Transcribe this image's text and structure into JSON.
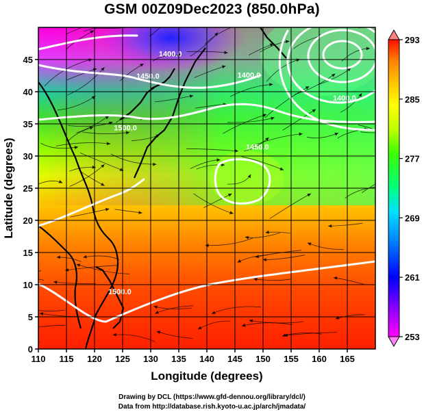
{
  "title": "GSM 00Z09Dec2023 (850.0hPa)",
  "credits": {
    "line1": "Drawing by DCL (https://www.gfd-dennou.org/library/dcl/)",
    "line2": "Data from http://database.rish.kyoto-u.ac.jp/arch/jmadata/"
  },
  "map": {
    "xlabel": "Longitude (degrees)",
    "ylabel": "Latitude  (degrees)",
    "xlim": [
      110,
      170
    ],
    "ylim": [
      0,
      50
    ],
    "xticks": [
      110,
      115,
      120,
      125,
      130,
      135,
      140,
      145,
      150,
      155,
      160,
      165
    ],
    "yticks": [
      0,
      5,
      10,
      15,
      20,
      25,
      30,
      35,
      40,
      45
    ],
    "grid": true,
    "contour_labels": [
      {
        "text": "1400.0",
        "lon": 164.5,
        "lat": 38.6
      },
      {
        "text": "1400.0",
        "lon": 133.5,
        "lat": 45.5
      },
      {
        "text": "1400.0",
        "lon": 147.5,
        "lat": 42.2
      },
      {
        "text": "1450.0",
        "lon": 129.5,
        "lat": 42.0
      },
      {
        "text": "1450.0",
        "lon": 149.0,
        "lat": 31.0
      },
      {
        "text": "1500.0",
        "lon": 125.5,
        "lat": 34.0
      },
      {
        "text": "1500.0",
        "lon": 124.5,
        "lat": 8.5
      }
    ]
  },
  "colorbar": {
    "ticks": [
      "293",
      "285",
      "277",
      "269",
      "261",
      "253"
    ],
    "min": 253,
    "max": 293,
    "colors": [
      "#ff00ff",
      "#8000ff",
      "#0000ff",
      "#0080ff",
      "#00e0ff",
      "#00ff80",
      "#40ff00",
      "#c0ff00",
      "#ffff00",
      "#ffc000",
      "#ff8000",
      "#ff3000",
      "#ff0000"
    ]
  },
  "colors": {
    "land": "#000000",
    "contour": "#ffffff",
    "streamline": "#000000"
  }
}
